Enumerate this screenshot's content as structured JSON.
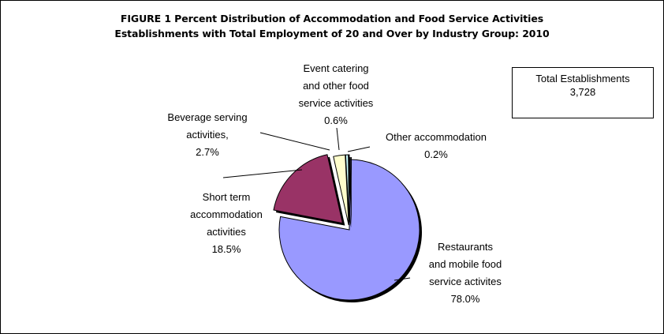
{
  "title": {
    "line1": "FIGURE 1  Percent Distribution of Accommodation and Food Service Activities",
    "line2": "Establishments with Total Employment of 20 and Over by Industry Group:  2010"
  },
  "total_box": {
    "label": "Total Establishments",
    "value": "3,728"
  },
  "chart_data": {
    "type": "pie",
    "title": "FIGURE 1  Percent Distribution of Accommodation and Food Service Activities Establishments with Total Employment of 20 and Over by Industry Group:  2010",
    "slices": [
      {
        "label": "Restaurants and mobile food service activites",
        "value": 78.0,
        "color": "#9999ff",
        "label_lines": [
          "Restaurants",
          "and mobile food",
          "service activites",
          "78.0%"
        ]
      },
      {
        "label": "Short term accommodation activities",
        "value": 18.5,
        "color": "#993366",
        "label_lines": [
          "Short term",
          "accommodation",
          "activities",
          "18.5%"
        ]
      },
      {
        "label": "Beverage serving activities,",
        "value": 2.7,
        "color": "#ffffcc",
        "label_lines": [
          "Beverage serving",
          "activities,",
          "2.7%"
        ]
      },
      {
        "label": "Event catering and other food service activities",
        "value": 0.6,
        "color": "#ccffff",
        "label_lines": [
          "Event catering",
          "and other food",
          "service activities",
          "0.6%"
        ]
      },
      {
        "label": "Other accommodation",
        "value": 0.2,
        "color": "#660066",
        "label_lines": [
          "Other accommodation",
          "0.2%"
        ]
      }
    ]
  }
}
